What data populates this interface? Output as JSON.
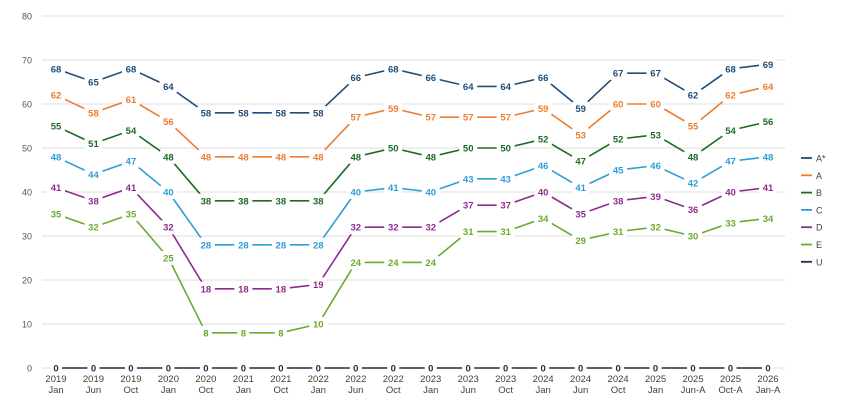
{
  "chart_data": {
    "type": "line",
    "title": "",
    "xlabel": "",
    "ylabel": "",
    "ylim": [
      0,
      80
    ],
    "yticks": [
      0,
      10,
      20,
      30,
      40,
      50,
      60,
      70,
      80
    ],
    "grid": true,
    "legend_position": "right",
    "categories": [
      [
        "2019",
        "Jan"
      ],
      [
        "2019",
        "Jun"
      ],
      [
        "2019",
        "Oct"
      ],
      [
        "2020",
        "Jan"
      ],
      [
        "2020",
        "Oct"
      ],
      [
        "2021",
        "Jan"
      ],
      [
        "2021",
        "Oct"
      ],
      [
        "2022",
        "Jan"
      ],
      [
        "2022",
        "Jun"
      ],
      [
        "2022",
        "Oct"
      ],
      [
        "2023",
        "Jan"
      ],
      [
        "2023",
        "Jun"
      ],
      [
        "2023",
        "Oct"
      ],
      [
        "2024",
        "Jan"
      ],
      [
        "2024",
        "Jun"
      ],
      [
        "2024",
        "Oct"
      ],
      [
        "2025",
        "Jan"
      ],
      [
        "2025",
        "Jun-A"
      ],
      [
        "2025",
        "Oct-A"
      ],
      [
        "2026",
        "Jan-A"
      ]
    ],
    "series": [
      {
        "name": "A*",
        "color": "#1f4e79",
        "values": [
          68,
          65,
          68,
          64,
          58,
          58,
          58,
          58,
          66,
          68,
          66,
          64,
          64,
          66,
          59,
          67,
          67,
          62,
          68,
          69
        ]
      },
      {
        "name": "A",
        "color": "#ed7d31",
        "values": [
          62,
          58,
          61,
          56,
          48,
          48,
          48,
          48,
          57,
          59,
          57,
          57,
          57,
          59,
          53,
          60,
          60,
          55,
          62,
          64
        ]
      },
      {
        "name": "B",
        "color": "#1e6b24",
        "values": [
          55,
          51,
          54,
          48,
          38,
          38,
          38,
          38,
          48,
          50,
          48,
          50,
          50,
          52,
          47,
          52,
          53,
          48,
          54,
          56
        ]
      },
      {
        "name": "C",
        "color": "#2e9fd6",
        "values": [
          48,
          44,
          47,
          40,
          28,
          28,
          28,
          28,
          40,
          41,
          40,
          43,
          43,
          46,
          41,
          45,
          46,
          42,
          47,
          48
        ]
      },
      {
        "name": "D",
        "color": "#8e2c8f",
        "values": [
          41,
          38,
          41,
          32,
          18,
          18,
          18,
          19,
          32,
          32,
          32,
          37,
          37,
          40,
          35,
          38,
          39,
          36,
          40,
          41
        ]
      },
      {
        "name": "E",
        "color": "#6aab2e",
        "values": [
          35,
          32,
          35,
          25,
          8,
          8,
          8,
          10,
          24,
          24,
          24,
          31,
          31,
          34,
          29,
          31,
          32,
          30,
          33,
          34
        ]
      },
      {
        "name": "U",
        "color": "#1c2f4a",
        "values": [
          0,
          0,
          0,
          0,
          0,
          0,
          0,
          0,
          0,
          0,
          0,
          0,
          0,
          0,
          0,
          0,
          0,
          0,
          0,
          0
        ]
      }
    ]
  }
}
